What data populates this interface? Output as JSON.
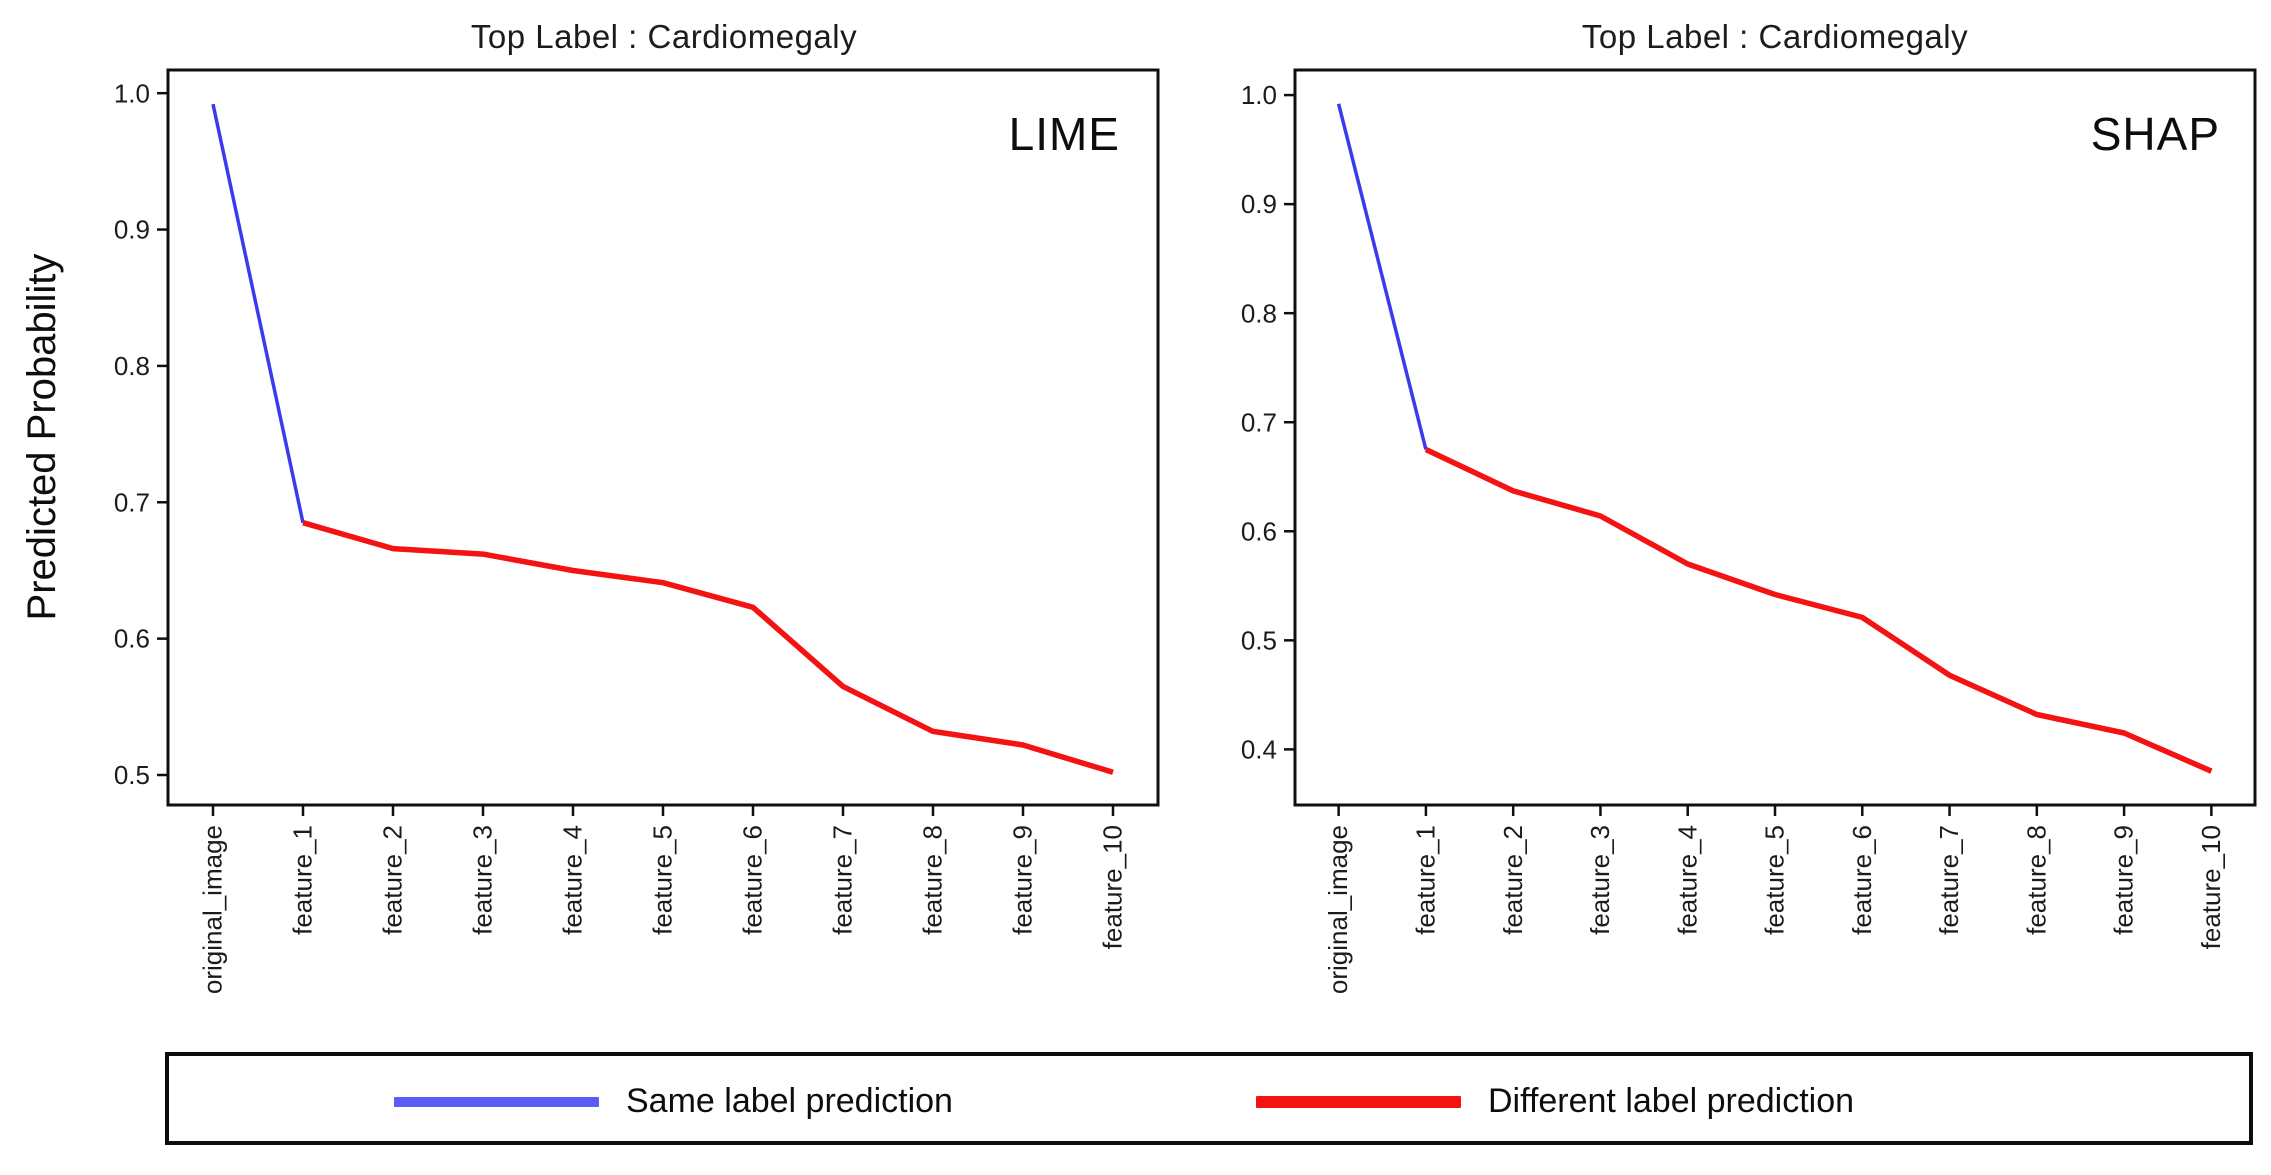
{
  "figure": {
    "ylabel": "Predicted Probability",
    "background": "#ffffff",
    "axis_color": "#0f0f0f"
  },
  "legend": {
    "position": "bottom",
    "items": [
      {
        "label": "Same label prediction",
        "color": "#5b5bf5"
      },
      {
        "label": "Different label prediction",
        "color": "#f41212"
      }
    ]
  },
  "chart_data": [
    {
      "type": "line",
      "title": "Top Label : Cardiomegaly",
      "corner_label": "LIME",
      "xlabel": "",
      "ylabel": "Predicted Probability",
      "categories": [
        "original_image",
        "feature_1",
        "feature_2",
        "feature_3",
        "feature_4",
        "feature_5",
        "feature_6",
        "feature_7",
        "feature_8",
        "feature_9",
        "feature_10"
      ],
      "series": [
        {
          "name": "Same label prediction",
          "color": "#3a3aee",
          "x": [
            0,
            1
          ],
          "values": [
            0.992,
            0.685
          ]
        },
        {
          "name": "Different label prediction",
          "color": "#f41212",
          "x": [
            1,
            2,
            3,
            4,
            5,
            6,
            7,
            8,
            9,
            10
          ],
          "values": [
            0.685,
            0.666,
            0.662,
            0.65,
            0.641,
            0.623,
            0.565,
            0.532,
            0.522,
            0.502
          ]
        }
      ],
      "ylim": [
        0.478,
        1.017
      ],
      "xlim": [
        -0.5,
        10.5
      ],
      "yticks": [
        1.0,
        0.9,
        0.8,
        0.7,
        0.6,
        0.5
      ],
      "ytick_labels": [
        "1.0",
        "0.9",
        "0.8",
        "0.7",
        "0.6",
        "0.5"
      ],
      "grid": false,
      "legend_position": "none"
    },
    {
      "type": "line",
      "title": "Top Label : Cardiomegaly",
      "corner_label": "SHAP",
      "xlabel": "",
      "ylabel": "",
      "categories": [
        "original_image",
        "feature_1",
        "feature_2",
        "feature_3",
        "feature_4",
        "feature_5",
        "feature_6",
        "feature_7",
        "feature_8",
        "feature_9",
        "feature_10"
      ],
      "series": [
        {
          "name": "Same label prediction",
          "color": "#3a3aee",
          "x": [
            0,
            1
          ],
          "values": [
            0.992,
            0.675
          ]
        },
        {
          "name": "Different label prediction",
          "color": "#f41212",
          "x": [
            1,
            2,
            3,
            4,
            5,
            6,
            7,
            8,
            9,
            10
          ],
          "values": [
            0.675,
            0.637,
            0.614,
            0.57,
            0.542,
            0.521,
            0.468,
            0.432,
            0.415,
            0.38
          ]
        }
      ],
      "ylim": [
        0.349,
        1.023
      ],
      "xlim": [
        -0.5,
        10.5
      ],
      "yticks": [
        1.0,
        0.9,
        0.8,
        0.7,
        0.6,
        0.5,
        0.4
      ],
      "ytick_labels": [
        "1.0",
        "0.9",
        "0.8",
        "0.7",
        "0.6",
        "0.5",
        "0.4"
      ],
      "grid": false,
      "legend_position": "none"
    }
  ]
}
